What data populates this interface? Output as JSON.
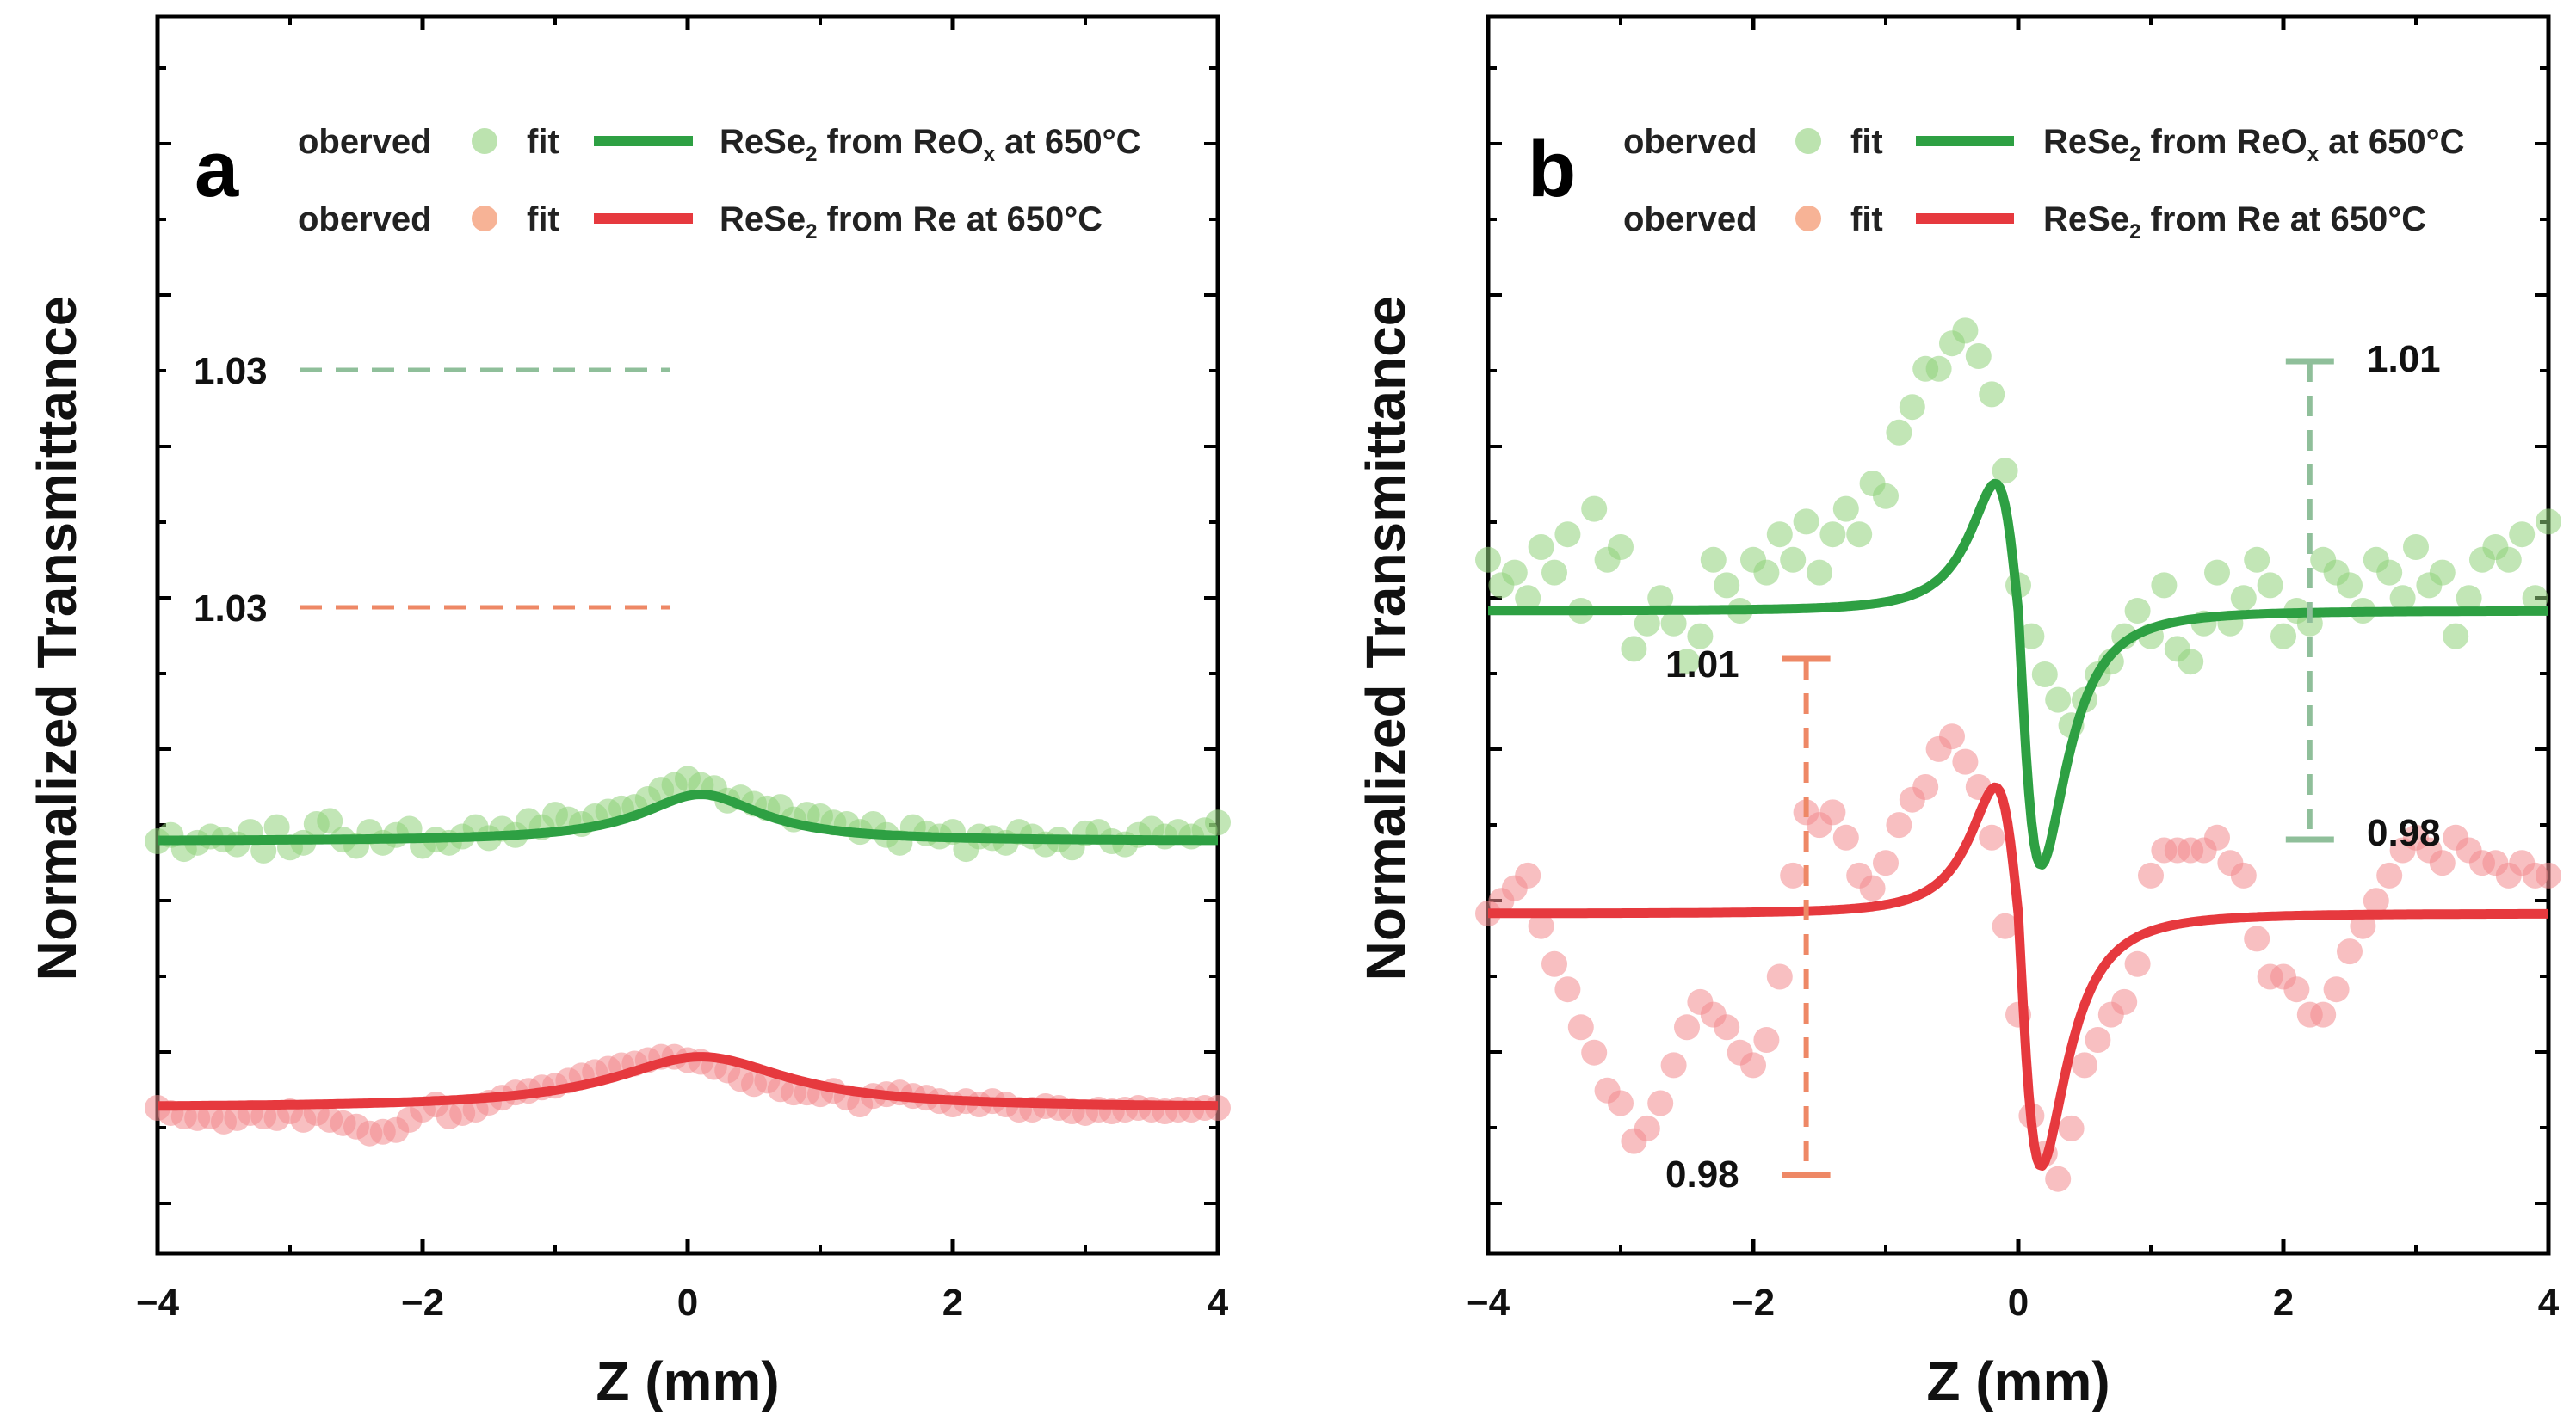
{
  "colors": {
    "green_line": "#2ea043",
    "green_points": "#8fd17a",
    "red_line": "#e6393e",
    "red_points": "#f28a8e",
    "green_dash": "#8fbf9a",
    "red_dash": "#ee8866"
  },
  "chart_data": [
    {
      "panel": "a",
      "type": "scatter",
      "title": "",
      "xlabel": "Z (mm)",
      "ylabel": "Normalized Transmittance",
      "xlim": [
        -4,
        4
      ],
      "x_ticks": [
        "−4",
        "−2",
        "0",
        "2",
        "4"
      ],
      "x_tick_values": [
        -4,
        -2,
        0,
        2,
        4
      ],
      "legend": [
        {
          "marker_label": "oberved",
          "line_label": "fit",
          "name": "ReSe",
          "sub": "2",
          "name_rest": " from ReO",
          "sub2": "x",
          "tail": " at 650°C",
          "color": "green"
        },
        {
          "marker_label": "oberved",
          "line_label": "fit",
          "name": "ReSe",
          "sub": "2",
          "name_rest": " from Re at 650°C",
          "sub2": "",
          "tail": "",
          "color": "red"
        }
      ],
      "annotations": [
        {
          "label": "1.03",
          "color": "green",
          "x": -0.2,
          "y": 1.03
        },
        {
          "label": "1.03",
          "color": "red",
          "x": -0.2,
          "y": 1.03
        }
      ],
      "series": [
        {
          "name": "ReSe2 from ReOx at 650°C (fit)",
          "kind": "line",
          "color": "green",
          "model": "lorentz",
          "baseline": 1.0,
          "peak": 1.03,
          "center": 0.1,
          "width": 0.55
        },
        {
          "name": "ReSe2 from Re at 650°C (fit)",
          "kind": "line",
          "color": "red",
          "model": "lorentz",
          "baseline": 1.0,
          "peak": 1.03,
          "center": 0.1,
          "width": 0.8
        },
        {
          "name": "ReSe2 from ReOx at 650°C (observed)",
          "kind": "points",
          "color": "green",
          "x": [
            -4.0,
            -3.9,
            -3.8,
            -3.7,
            -3.6,
            -3.5,
            -3.4,
            -3.3,
            -3.2,
            -3.1,
            -3.0,
            -2.9,
            -2.8,
            -2.7,
            -2.6,
            -2.5,
            -2.4,
            -2.3,
            -2.2,
            -2.1,
            -2.0,
            -1.9,
            -1.8,
            -1.7,
            -1.6,
            -1.5,
            -1.4,
            -1.3,
            -1.2,
            -1.1,
            -1.0,
            -0.9,
            -0.8,
            -0.7,
            -0.6,
            -0.5,
            -0.4,
            -0.3,
            -0.2,
            -0.1,
            0.0,
            0.1,
            0.2,
            0.3,
            0.4,
            0.5,
            0.6,
            0.7,
            0.8,
            0.9,
            1.0,
            1.1,
            1.2,
            1.3,
            1.4,
            1.5,
            1.6,
            1.7,
            1.8,
            1.9,
            2.0,
            2.1,
            2.2,
            2.3,
            2.4,
            2.5,
            2.6,
            2.7,
            2.8,
            2.9,
            3.0,
            3.1,
            3.2,
            3.3,
            3.4,
            3.5,
            3.6,
            3.7,
            3.8,
            3.9,
            4.0
          ],
          "y": [
            1.0,
            1.004,
            0.995,
            0.999,
            1.003,
            1.001,
            0.998,
            1.006,
            0.994,
            1.009,
            0.996,
            0.999,
            1.011,
            1.013,
            1.001,
            0.997,
            1.006,
            0.999,
            1.004,
            1.008,
            0.997,
            1.001,
            0.999,
            1.003,
            1.009,
            1.002,
            1.008,
            1.004,
            1.013,
            1.009,
            1.017,
            1.014,
            1.011,
            1.016,
            1.019,
            1.021,
            1.022,
            1.027,
            1.033,
            1.036,
            1.04,
            1.036,
            1.034,
            1.026,
            1.028,
            1.024,
            1.021,
            1.022,
            1.014,
            1.017,
            1.016,
            1.012,
            1.011,
            1.006,
            1.011,
            1.004,
            0.999,
            1.009,
            1.005,
            1.003,
            1.006,
            0.995,
            1.003,
            1.002,
            0.999,
            1.006,
            1.003,
            0.998,
            1.001,
            0.996,
            1.005,
            1.006,
            1.0,
            0.998,
            1.004,
            1.008,
            1.003,
            1.006,
            1.003,
            1.007,
            1.012
          ]
        },
        {
          "name": "ReSe2 from Re at 650°C (observed)",
          "kind": "points",
          "color": "red",
          "x": [
            -4.0,
            -3.9,
            -3.8,
            -3.7,
            -3.6,
            -3.5,
            -3.4,
            -3.3,
            -3.2,
            -3.1,
            -3.0,
            -2.9,
            -2.8,
            -2.7,
            -2.6,
            -2.5,
            -2.4,
            -2.3,
            -2.2,
            -2.1,
            -2.0,
            -1.9,
            -1.8,
            -1.7,
            -1.6,
            -1.5,
            -1.4,
            -1.3,
            -1.2,
            -1.1,
            -1.0,
            -0.9,
            -0.8,
            -0.7,
            -0.6,
            -0.5,
            -0.4,
            -0.3,
            -0.2,
            -0.1,
            0.0,
            0.1,
            0.2,
            0.3,
            0.4,
            0.5,
            0.6,
            0.7,
            0.8,
            0.9,
            1.0,
            1.1,
            1.2,
            1.3,
            1.4,
            1.5,
            1.6,
            1.7,
            1.8,
            1.9,
            2.0,
            2.1,
            2.2,
            2.3,
            2.4,
            2.5,
            2.6,
            2.7,
            2.8,
            2.9,
            3.0,
            3.1,
            3.2,
            3.3,
            3.4,
            3.5,
            3.6,
            3.7,
            3.8,
            3.9,
            4.0
          ],
          "y": [
            1.0,
            0.997,
            0.995,
            0.994,
            0.995,
            0.992,
            0.994,
            0.997,
            0.995,
            0.994,
            0.998,
            0.993,
            0.997,
            0.993,
            0.991,
            0.989,
            0.985,
            0.986,
            0.987,
            0.993,
            0.999,
            1.002,
            0.995,
            0.997,
            0.999,
            1.003,
            1.006,
            1.009,
            1.01,
            1.012,
            1.013,
            1.016,
            1.019,
            1.021,
            1.023,
            1.025,
            1.026,
            1.028,
            1.03,
            1.03,
            1.028,
            1.027,
            1.024,
            1.022,
            1.017,
            1.014,
            1.016,
            1.011,
            1.009,
            1.009,
            1.008,
            1.01,
            1.006,
            1.002,
            1.007,
            1.008,
            1.009,
            1.007,
            1.006,
            1.004,
            1.002,
            1.004,
            1.002,
            1.004,
            1.002,
            0.999,
            0.999,
            1.001,
            1.0,
            0.998,
            0.997,
            0.999,
            0.998,
            0.999,
            1.0,
            0.999,
            0.998,
            0.999,
            0.999,
            1.0,
            1.0
          ]
        }
      ]
    },
    {
      "panel": "b",
      "type": "scatter",
      "title": "",
      "xlabel": "Z (mm)",
      "ylabel": "Normalized Transmittance",
      "xlim": [
        -4,
        4
      ],
      "x_ticks": [
        "−4",
        "−2",
        "0",
        "2",
        "4"
      ],
      "x_tick_values": [
        -4,
        -2,
        0,
        2,
        4
      ],
      "legend": [
        {
          "marker_label": "oberved",
          "line_label": "fit",
          "name": "ReSe",
          "sub": "2",
          "name_rest": " from ReO",
          "sub2": "x",
          "tail": " at 650°C",
          "color": "green"
        },
        {
          "marker_label": "oberved",
          "line_label": "fit",
          "name": "ReSe",
          "sub": "2",
          "name_rest": " from Re at 650°C",
          "sub2": "",
          "tail": "",
          "color": "red"
        }
      ],
      "annotations": [
        {
          "label_top": "1.01",
          "label_bottom": "0.98",
          "color": "green",
          "x": 2.2
        },
        {
          "label_top": "1.01",
          "label_bottom": "0.98",
          "color": "red",
          "x": -1.6
        }
      ],
      "series": [
        {
          "name": "ReSe2 from ReOx at 650°C (fit)",
          "kind": "line",
          "color": "green",
          "model": "dispersive",
          "baseline": 1.0,
          "peak": 1.01,
          "valley": 0.98,
          "center": 0.0,
          "width": 0.3
        },
        {
          "name": "ReSe2 from Re at 650°C (fit)",
          "kind": "line",
          "color": "red",
          "model": "dispersive",
          "baseline": 1.0,
          "peak": 1.01,
          "valley": 0.98,
          "center": 0.0,
          "width": 0.3
        },
        {
          "name": "ReSe2 from ReOx at 650°C (observed)",
          "kind": "points",
          "color": "green",
          "x": [
            -4.0,
            -3.9,
            -3.8,
            -3.7,
            -3.6,
            -3.5,
            -3.4,
            -3.3,
            -3.2,
            -3.1,
            -3.0,
            -2.9,
            -2.8,
            -2.7,
            -2.6,
            -2.5,
            -2.4,
            -2.3,
            -2.2,
            -2.1,
            -2.0,
            -1.9,
            -1.8,
            -1.7,
            -1.6,
            -1.5,
            -1.4,
            -1.3,
            -1.2,
            -1.1,
            -1.0,
            -0.9,
            -0.8,
            -0.7,
            -0.6,
            -0.5,
            -0.4,
            -0.3,
            -0.2,
            -0.1,
            0.0,
            0.1,
            0.2,
            0.3,
            0.4,
            0.5,
            0.6,
            0.7,
            0.8,
            0.9,
            1.0,
            1.1,
            1.2,
            1.3,
            1.4,
            1.5,
            1.6,
            1.7,
            1.8,
            1.9,
            2.0,
            2.1,
            2.2,
            2.3,
            2.4,
            2.5,
            2.6,
            2.7,
            2.8,
            2.9,
            3.0,
            3.1,
            3.2,
            3.3,
            3.4,
            3.5,
            3.6,
            3.7,
            3.8,
            3.9,
            4.0
          ],
          "y": [
            1.004,
            1.002,
            1.003,
            1.001,
            1.005,
            1.003,
            1.006,
            1.0,
            1.008,
            1.004,
            1.005,
            0.997,
            0.999,
            1.001,
            0.999,
            0.996,
            0.998,
            1.004,
            1.002,
            1.0,
            1.004,
            1.003,
            1.006,
            1.004,
            1.007,
            1.003,
            1.006,
            1.008,
            1.006,
            1.01,
            1.009,
            1.014,
            1.016,
            1.019,
            1.019,
            1.021,
            1.022,
            1.02,
            1.017,
            1.011,
            1.002,
            0.998,
            0.995,
            0.993,
            0.991,
            0.993,
            0.995,
            0.996,
            0.998,
            1.0,
            0.998,
            1.002,
            0.997,
            0.996,
            0.999,
            1.003,
            0.999,
            1.001,
            1.004,
            1.002,
            0.998,
            1.0,
            0.999,
            1.004,
            1.003,
            1.002,
            1.0,
            1.004,
            1.003,
            1.001,
            1.005,
            1.002,
            1.003,
            0.998,
            1.001,
            1.004,
            1.005,
            1.004,
            1.006,
            1.001,
            1.007
          ]
        },
        {
          "name": "ReSe2 from Re at 650°C (observed)",
          "kind": "points",
          "color": "red",
          "x": [
            -4.0,
            -3.9,
            -3.8,
            -3.7,
            -3.6,
            -3.5,
            -3.4,
            -3.3,
            -3.2,
            -3.1,
            -3.0,
            -2.9,
            -2.8,
            -2.7,
            -2.6,
            -2.5,
            -2.4,
            -2.3,
            -2.2,
            -2.1,
            -2.0,
            -1.9,
            -1.8,
            -1.7,
            -1.6,
            -1.5,
            -1.4,
            -1.3,
            -1.2,
            -1.1,
            -1.0,
            -0.9,
            -0.8,
            -0.7,
            -0.6,
            -0.5,
            -0.4,
            -0.3,
            -0.2,
            -0.1,
            0.0,
            0.1,
            0.2,
            0.3,
            0.4,
            0.5,
            0.6,
            0.7,
            0.8,
            0.9,
            1.0,
            1.1,
            1.2,
            1.3,
            1.4,
            1.5,
            1.6,
            1.7,
            1.8,
            1.9,
            2.0,
            2.1,
            2.2,
            2.3,
            2.4,
            2.5,
            2.6,
            2.7,
            2.8,
            2.9,
            3.0,
            3.1,
            3.2,
            3.3,
            3.4,
            3.5,
            3.6,
            3.7,
            3.8,
            3.9,
            4.0
          ],
          "y": [
            1.0,
            1.001,
            1.002,
            1.003,
            0.999,
            0.996,
            0.994,
            0.991,
            0.989,
            0.986,
            0.985,
            0.982,
            0.983,
            0.985,
            0.988,
            0.991,
            0.993,
            0.992,
            0.991,
            0.989,
            0.988,
            0.99,
            0.995,
            1.003,
            1.008,
            1.007,
            1.008,
            1.006,
            1.003,
            1.002,
            1.004,
            1.007,
            1.009,
            1.01,
            1.013,
            1.014,
            1.012,
            1.01,
            1.006,
            0.999,
            0.992,
            0.984,
            0.981,
            0.979,
            0.983,
            0.988,
            0.99,
            0.992,
            0.993,
            0.996,
            1.003,
            1.005,
            1.005,
            1.005,
            1.005,
            1.006,
            1.004,
            1.003,
            0.998,
            0.995,
            0.995,
            0.994,
            0.992,
            0.992,
            0.994,
            0.997,
            0.999,
            1.001,
            1.003,
            1.005,
            1.006,
            1.005,
            1.004,
            1.006,
            1.005,
            1.004,
            1.004,
            1.003,
            1.004,
            1.003,
            1.003
          ]
        }
      ]
    }
  ]
}
